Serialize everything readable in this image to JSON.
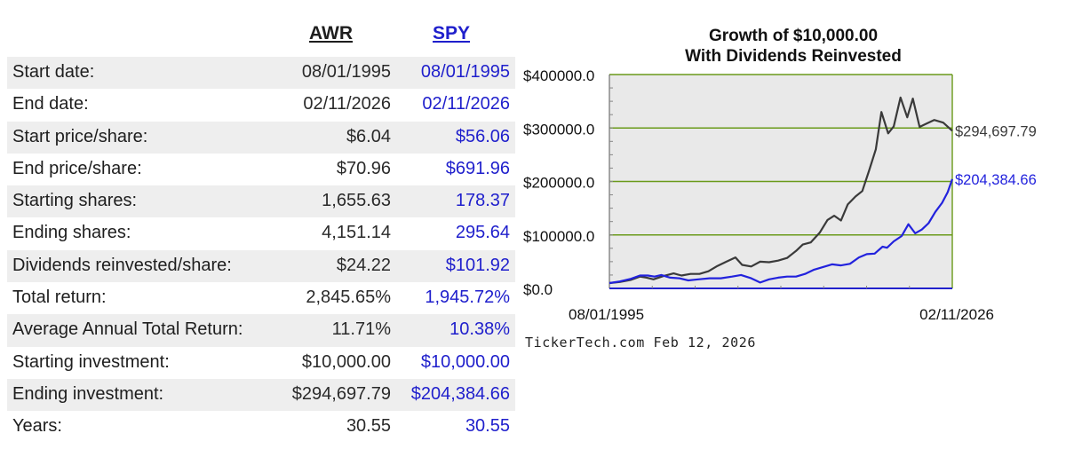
{
  "table": {
    "header_a": "AWR",
    "header_b": "SPY",
    "rows": [
      {
        "label": "Start date:",
        "a": "08/01/1995",
        "b": "08/01/1995"
      },
      {
        "label": "End date:",
        "a": "02/11/2026",
        "b": "02/11/2026"
      },
      {
        "label": "Start price/share:",
        "a": "$6.04",
        "b": "$56.06"
      },
      {
        "label": "End price/share:",
        "a": "$70.96",
        "b": "$691.96"
      },
      {
        "label": "Starting shares:",
        "a": "1,655.63",
        "b": "178.37"
      },
      {
        "label": "Ending shares:",
        "a": "4,151.14",
        "b": "295.64"
      },
      {
        "label": "Dividends reinvested/share:",
        "a": "$24.22",
        "b": "$101.92"
      },
      {
        "label": "Total return:",
        "a": "2,845.65%",
        "b": "1,945.72%"
      },
      {
        "label": "Average Annual Total Return:",
        "a": "11.71%",
        "b": "10.38%"
      },
      {
        "label": "Starting investment:",
        "a": "$10,000.00",
        "b": "$10,000.00"
      },
      {
        "label": "Ending investment:",
        "a": "$294,697.79",
        "b": "$204,384.66"
      },
      {
        "label": "Years:",
        "a": "30.55",
        "b": "30.55"
      }
    ]
  },
  "colors": {
    "series_a": "#3a3a3a",
    "series_b": "#2222dd",
    "gridline": "#6a9a1a",
    "plot_bg": "#e9e9e9",
    "table_text_b": "#1f1fcc"
  },
  "chart_data": {
    "type": "line",
    "title": "Growth of $10,000.00",
    "subtitle": "With Dividends Reinvested",
    "xlabel": "",
    "ylabel": "",
    "x_tick_labels": [
      "08/01/1995",
      "02/11/2026"
    ],
    "y_tick_labels": [
      "$400000.0",
      "$300000.0",
      "$200000.0",
      "$100000.0",
      "$0.0"
    ],
    "ylim": [
      0,
      400000
    ],
    "xlim": [
      1995.58,
      2026.11
    ],
    "grid": true,
    "source": "TickerTech.com  Feb 12, 2026",
    "series": [
      {
        "end_label": "$294,697.79",
        "color": "#3a3a3a",
        "points": [
          [
            1995.58,
            10000
          ],
          [
            1996.5,
            12000
          ],
          [
            1997.5,
            16000
          ],
          [
            1998.3,
            22000
          ],
          [
            1998.9,
            20000
          ],
          [
            1999.5,
            17000
          ],
          [
            2000.4,
            23000
          ],
          [
            2001.3,
            28000
          ],
          [
            2002.0,
            24000
          ],
          [
            2002.8,
            27000
          ],
          [
            2003.6,
            27000
          ],
          [
            2004.4,
            32000
          ],
          [
            2005.2,
            42000
          ],
          [
            2006.0,
            50000
          ],
          [
            2006.8,
            58000
          ],
          [
            2007.4,
            44000
          ],
          [
            2008.2,
            41000
          ],
          [
            2009.0,
            50000
          ],
          [
            2009.8,
            49000
          ],
          [
            2010.6,
            52000
          ],
          [
            2011.4,
            57000
          ],
          [
            2012.2,
            70000
          ],
          [
            2012.8,
            82000
          ],
          [
            2013.5,
            86000
          ],
          [
            2014.3,
            104000
          ],
          [
            2015.0,
            128000
          ],
          [
            2015.6,
            136000
          ],
          [
            2016.2,
            127000
          ],
          [
            2016.8,
            157000
          ],
          [
            2017.5,
            172000
          ],
          [
            2018.1,
            182000
          ],
          [
            2018.7,
            220000
          ],
          [
            2019.3,
            260000
          ],
          [
            2019.8,
            330000
          ],
          [
            2020.4,
            290000
          ],
          [
            2020.9,
            303000
          ],
          [
            2021.5,
            357000
          ],
          [
            2022.1,
            320000
          ],
          [
            2022.6,
            355000
          ],
          [
            2023.2,
            302000
          ],
          [
            2023.8,
            308000
          ],
          [
            2024.5,
            315000
          ],
          [
            2025.3,
            310000
          ],
          [
            2026.11,
            294698
          ]
        ]
      },
      {
        "end_label": "$204,384.66",
        "color": "#2222dd",
        "points": [
          [
            1995.58,
            10000
          ],
          [
            1996.5,
            13000
          ],
          [
            1997.5,
            18000
          ],
          [
            1998.3,
            24000
          ],
          [
            1999.0,
            24000
          ],
          [
            1999.6,
            22000
          ],
          [
            2000.2,
            25000
          ],
          [
            2001.0,
            20000
          ],
          [
            2001.8,
            19000
          ],
          [
            2002.6,
            15000
          ],
          [
            2003.5,
            17000
          ],
          [
            2004.5,
            19000
          ],
          [
            2005.5,
            19000
          ],
          [
            2006.5,
            22000
          ],
          [
            2007.3,
            25000
          ],
          [
            2008.2,
            19000
          ],
          [
            2009.0,
            11000
          ],
          [
            2009.8,
            17000
          ],
          [
            2010.6,
            20000
          ],
          [
            2011.4,
            22000
          ],
          [
            2012.2,
            22000
          ],
          [
            2013.0,
            27000
          ],
          [
            2013.8,
            35000
          ],
          [
            2014.6,
            40000
          ],
          [
            2015.4,
            45000
          ],
          [
            2016.2,
            43000
          ],
          [
            2017.0,
            46000
          ],
          [
            2017.8,
            58000
          ],
          [
            2018.5,
            64000
          ],
          [
            2019.2,
            65000
          ],
          [
            2019.9,
            78000
          ],
          [
            2020.3,
            76000
          ],
          [
            2020.9,
            88000
          ],
          [
            2021.6,
            98000
          ],
          [
            2022.2,
            120000
          ],
          [
            2022.8,
            103000
          ],
          [
            2023.4,
            110000
          ],
          [
            2024.0,
            122000
          ],
          [
            2024.6,
            143000
          ],
          [
            2025.2,
            160000
          ],
          [
            2025.7,
            180000
          ],
          [
            2026.11,
            204385
          ]
        ]
      }
    ]
  }
}
